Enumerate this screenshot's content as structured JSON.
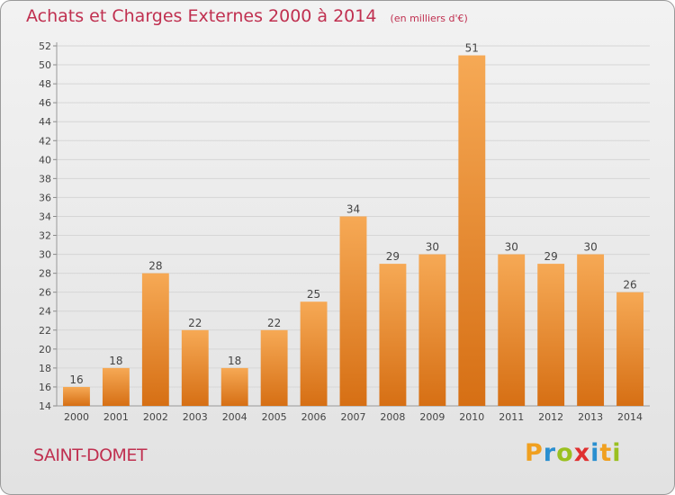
{
  "header": {
    "title": "Achats et Charges Externes 2000 à 2014",
    "subtitle": "(en milliers d'€)"
  },
  "footer": {
    "place": "SAINT-DOMET",
    "brand_letters": [
      "P",
      "r",
      "o",
      "x",
      "i",
      "t",
      "i"
    ]
  },
  "colors": {
    "bar_light": "#f6a955",
    "bar_dark": "#d66f14",
    "title": "#c03050",
    "grid": "#d6d6d6"
  },
  "chart_data": {
    "type": "bar",
    "title": "Achats et Charges Externes 2000 à 2014",
    "subtitle": "(en milliers d'€)",
    "categories": [
      "2000",
      "2001",
      "2002",
      "2003",
      "2004",
      "2005",
      "2006",
      "2007",
      "2008",
      "2009",
      "2010",
      "2011",
      "2012",
      "2013",
      "2014"
    ],
    "values": [
      16,
      18,
      28,
      22,
      18,
      22,
      25,
      34,
      29,
      30,
      51,
      30,
      29,
      30,
      26
    ],
    "ylim": [
      14,
      52
    ],
    "yticks": [
      14,
      16,
      18,
      20,
      22,
      24,
      26,
      28,
      30,
      32,
      34,
      36,
      38,
      40,
      42,
      44,
      46,
      48,
      50,
      52
    ],
    "grid": true,
    "data_labels": true,
    "xlabel": "",
    "ylabel": ""
  }
}
